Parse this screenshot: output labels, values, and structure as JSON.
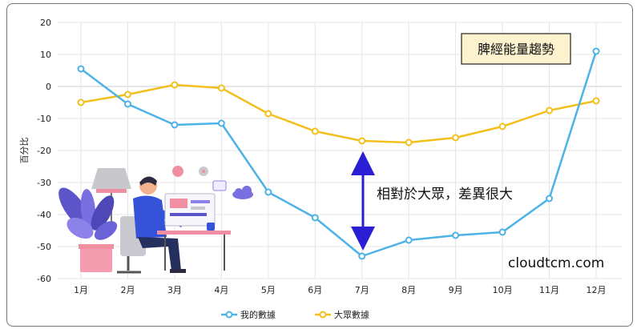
{
  "chart_data": {
    "type": "line",
    "title": "脾經能量趨勢",
    "ylabel": "百分比",
    "xlabel": "",
    "categories": [
      "1月",
      "2月",
      "3月",
      "4月",
      "5月",
      "6月",
      "7月",
      "8月",
      "9月",
      "10月",
      "11月",
      "12月"
    ],
    "yticks": [
      20,
      10,
      0,
      -10,
      -20,
      -30,
      -40,
      -50,
      -60
    ],
    "ylim": [
      -60,
      20
    ],
    "grid": true,
    "legend_position": "bottom",
    "series": [
      {
        "name": "我的數據",
        "color": "#4db3e6",
        "values": [
          5.5,
          -5.5,
          -12,
          -11.5,
          -33,
          -41,
          -53,
          -48,
          -46.5,
          -45.5,
          -35,
          11
        ]
      },
      {
        "name": "大眾數據",
        "color": "#f2c01d",
        "values": [
          -5,
          -2.5,
          0.5,
          -0.5,
          -8.5,
          -14,
          -17,
          -17.5,
          -16,
          -12.5,
          -7.5,
          -4.5
        ]
      }
    ],
    "annotations": [
      {
        "text": "相對於大眾，差異很大"
      }
    ]
  },
  "watermark": "cloudtcm.com",
  "colors": {
    "arrow": "#2b1fd6",
    "grid": "#e5e5e5",
    "title_box_bg": "#fdf3cf"
  }
}
